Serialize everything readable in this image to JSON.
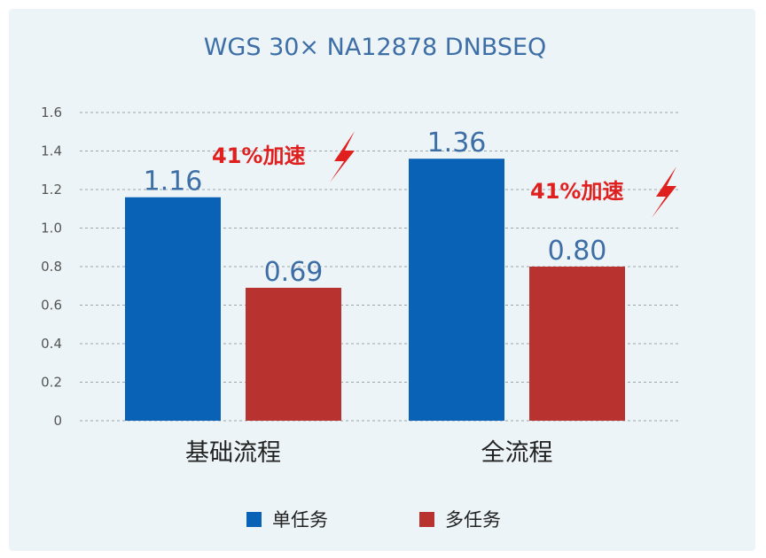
{
  "chart_data": {
    "type": "bar",
    "title": "WGS 30× NA12878 DNBSEQ",
    "categories": [
      "基础流程",
      "全流程"
    ],
    "series": [
      {
        "name": "单任务",
        "color": "#0a62b6",
        "values": [
          1.16,
          1.36
        ],
        "labels": [
          "1.16",
          "1.36"
        ]
      },
      {
        "name": "多任务",
        "color": "#b83330",
        "values": [
          0.69,
          0.8
        ],
        "labels": [
          "0.69",
          "0.80"
        ]
      }
    ],
    "ylim": [
      0,
      1.6
    ],
    "yticks": [
      "0",
      "0.2",
      "0.4",
      "0.6",
      "0.8",
      "1.0",
      "1.2",
      "1.4",
      "1.6"
    ],
    "grid": true,
    "legend_position": "bottom",
    "annotations": [
      "41%加速",
      "41%加速"
    ],
    "annotation_icon": "lightning-bolt-icon",
    "annotation_color": "#e0201f"
  }
}
